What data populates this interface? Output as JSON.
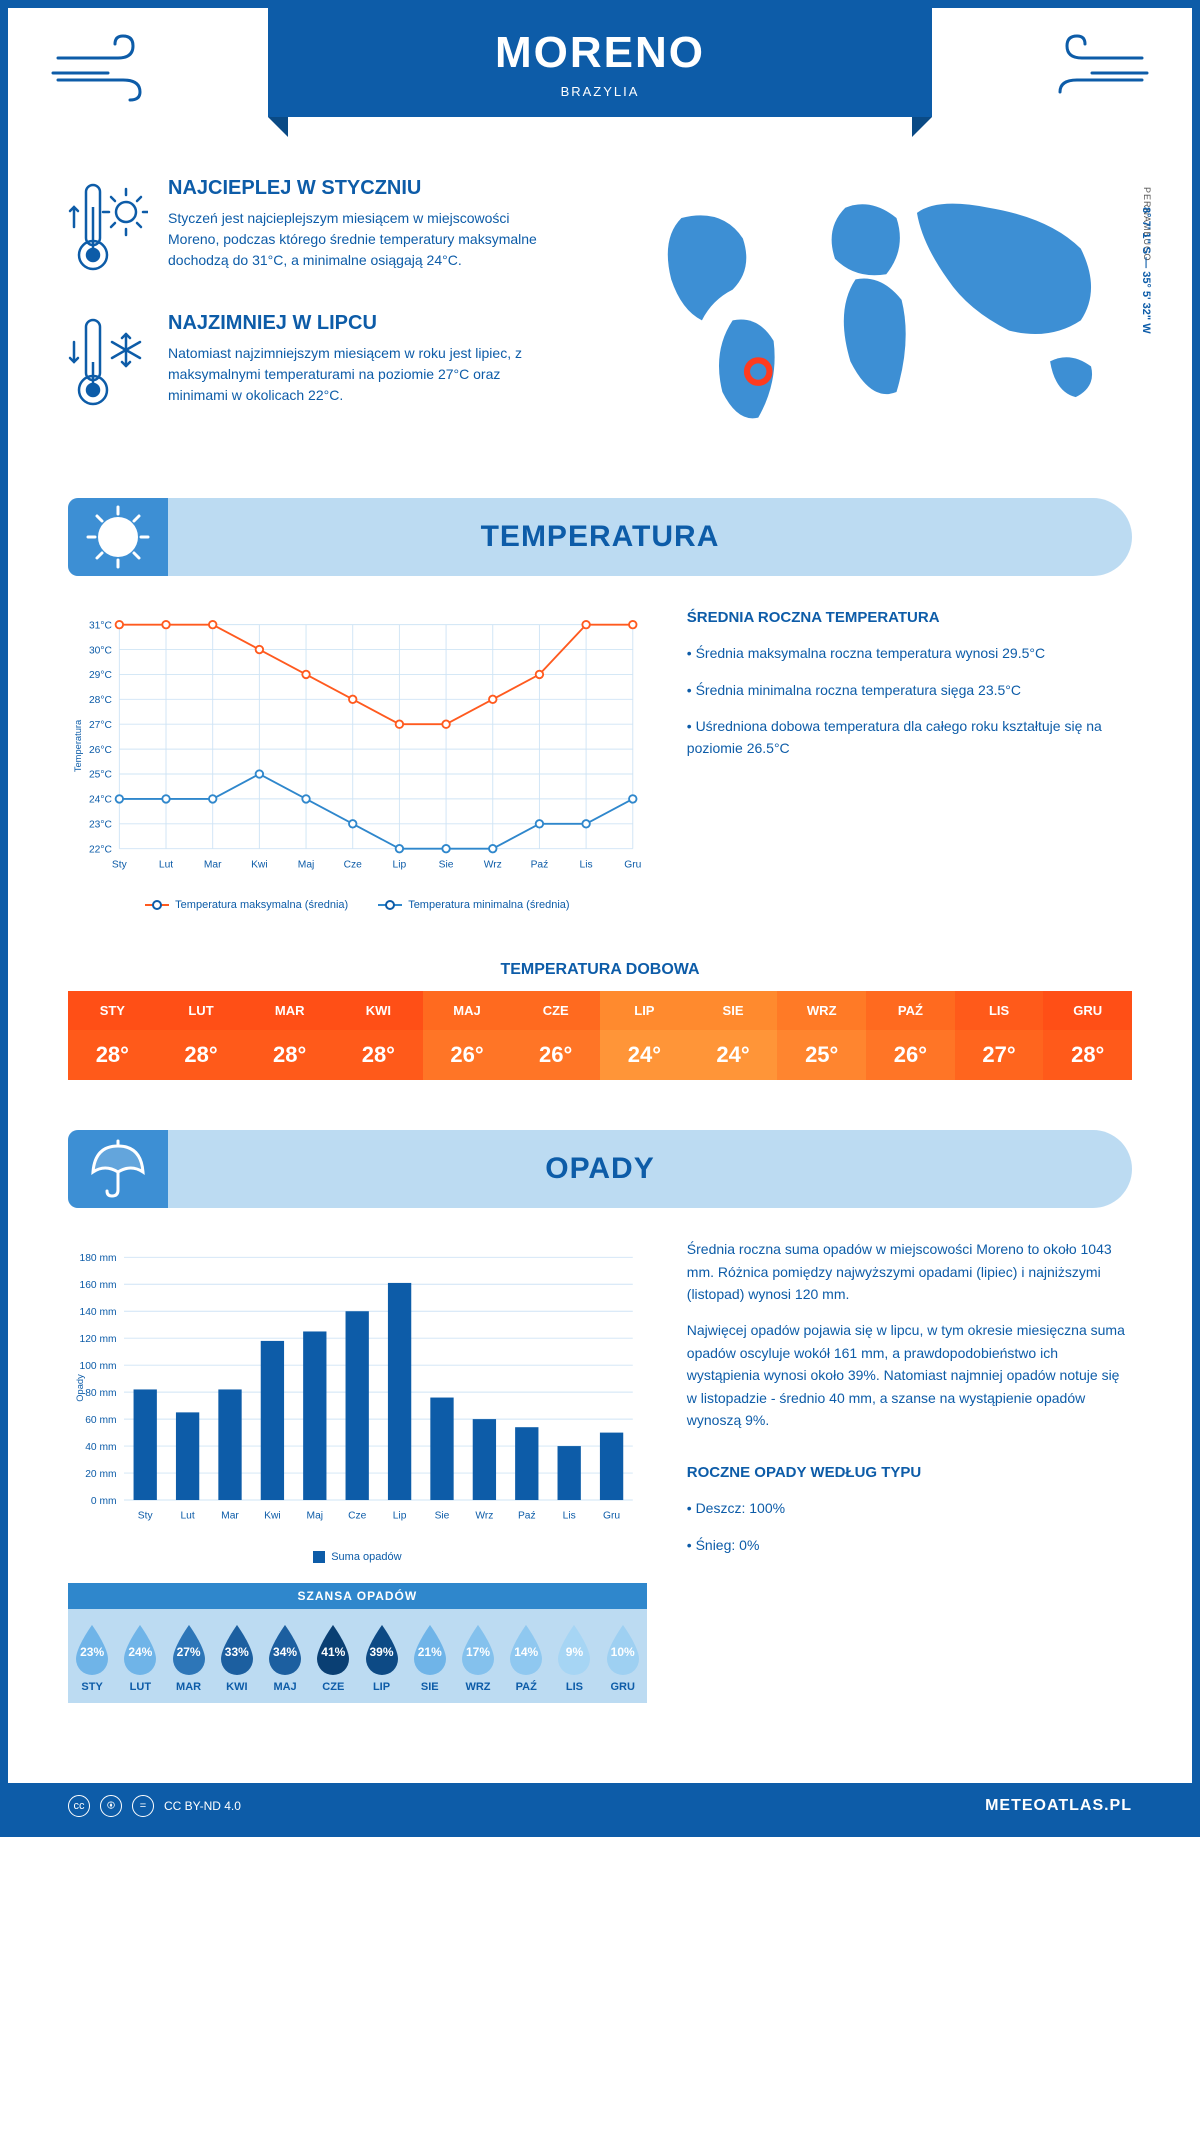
{
  "header": {
    "city": "MORENO",
    "country": "BRAZYLIA",
    "coords": "8° 7' 1\" S — 35° 5' 32\" W",
    "region": "PERNAMBUCO"
  },
  "intro": {
    "warm": {
      "title": "NAJCIEPLEJ W STYCZNIU",
      "text": "Styczeń jest najcieplejszym miesiącem w miejscowości Moreno, podczas którego średnie temperatury maksymalne dochodzą do 31°C, a minimalne osiągają 24°C."
    },
    "cold": {
      "title": "NAJZIMNIEJ W LIPCU",
      "text": "Natomiast najzimniejszym miesiącem w roku jest lipiec, z maksymalnymi temperaturami na poziomie 27°C oraz minimami w okolicach 22°C."
    }
  },
  "temperature": {
    "section_title": "TEMPERATURA",
    "months": [
      "Sty",
      "Lut",
      "Mar",
      "Kwi",
      "Maj",
      "Cze",
      "Lip",
      "Sie",
      "Wrz",
      "Paź",
      "Lis",
      "Gru"
    ],
    "max": [
      31,
      31,
      31,
      30,
      29,
      28,
      27,
      27,
      28,
      29,
      31,
      31
    ],
    "min": [
      24,
      24,
      24,
      25,
      24,
      23,
      22,
      22,
      22,
      23,
      23,
      24
    ],
    "ylim": [
      22,
      31
    ],
    "y_ticks": [
      22,
      23,
      24,
      25,
      26,
      27,
      28,
      29,
      30,
      31
    ],
    "max_color": "#ff5a1f",
    "min_color": "#2f87cc",
    "grid_color": "#cfe4f5",
    "legend_max": "Temperatura maksymalna (średnia)",
    "legend_min": "Temperatura minimalna (średnia)",
    "axis_label": "Temperatura",
    "stats_title": "ŚREDNIA ROCZNA TEMPERATURA",
    "stats": [
      "• Średnia maksymalna roczna temperatura wynosi 29.5°C",
      "• Średnia minimalna roczna temperatura sięga 23.5°C",
      "• Uśredniona dobowa temperatura dla całego roku kształtuje się na poziomie 26.5°C"
    ],
    "daily_title": "TEMPERATURA DOBOWA",
    "daily_months": [
      "STY",
      "LUT",
      "MAR",
      "KWI",
      "MAJ",
      "CZE",
      "LIP",
      "SIE",
      "WRZ",
      "PAŹ",
      "LIS",
      "GRU"
    ],
    "daily_values": [
      "28°",
      "28°",
      "28°",
      "28°",
      "26°",
      "26°",
      "24°",
      "24°",
      "25°",
      "26°",
      "27°",
      "28°"
    ],
    "daily_header_colors": [
      "#ff4f16",
      "#ff4f16",
      "#ff4f16",
      "#ff4f16",
      "#ff6a1f",
      "#ff6a1f",
      "#ff8a2e",
      "#ff8a2e",
      "#ff7a26",
      "#ff6a1f",
      "#ff5a1a",
      "#ff4f16"
    ],
    "daily_value_colors": [
      "#ff5a1a",
      "#ff5a1a",
      "#ff5a1a",
      "#ff5a1a",
      "#ff7526",
      "#ff7526",
      "#ff9538",
      "#ff9538",
      "#ff852f",
      "#ff7526",
      "#ff651e",
      "#ff5a1a"
    ]
  },
  "precipitation": {
    "section_title": "OPADY",
    "months": [
      "Sty",
      "Lut",
      "Mar",
      "Kwi",
      "Maj",
      "Cze",
      "Lip",
      "Sie",
      "Wrz",
      "Paź",
      "Lis",
      "Gru"
    ],
    "values": [
      82,
      65,
      82,
      118,
      125,
      140,
      161,
      76,
      60,
      54,
      40,
      50
    ],
    "ylim": [
      0,
      180
    ],
    "y_ticks": [
      0,
      20,
      40,
      60,
      80,
      100,
      120,
      140,
      160,
      180
    ],
    "bar_color": "#0d5ca8",
    "grid_color": "#cfe4f5",
    "legend": "Suma opadów",
    "axis_label": "Opady",
    "text1": "Średnia roczna suma opadów w miejscowości Moreno to około 1043 mm. Różnica pomiędzy najwyższymi opadami (lipiec) i najniższymi (listopad) wynosi 120 mm.",
    "text2": "Najwięcej opadów pojawia się w lipcu, w tym okresie miesięczna suma opadów oscyluje wokół 161 mm, a prawdopodobieństwo ich wystąpienia wynosi około 39%. Natomiast najmniej opadów notuje się w listopadzie - średnio 40 mm, a szanse na wystąpienie opadów wynoszą 9%.",
    "chance_title": "SZANSA OPADÓW",
    "chance_months": [
      "STY",
      "LUT",
      "MAR",
      "KWI",
      "MAJ",
      "CZE",
      "LIP",
      "SIE",
      "WRZ",
      "PAŹ",
      "LIS",
      "GRU"
    ],
    "chance_values": [
      "23%",
      "24%",
      "27%",
      "33%",
      "34%",
      "41%",
      "39%",
      "21%",
      "17%",
      "14%",
      "9%",
      "10%"
    ],
    "chance_colors": [
      "#6fb4e8",
      "#6fb4e8",
      "#2d76b8",
      "#1c5fa0",
      "#1c5fa0",
      "#0a3f73",
      "#0d4a85",
      "#6fb4e8",
      "#84c1ed",
      "#8fc8f0",
      "#a6d5f4",
      "#9ed0f2"
    ],
    "type_title": "ROCZNE OPADY WEDŁUG TYPU",
    "types": [
      "• Deszcz: 100%",
      "• Śnieg: 0%"
    ]
  },
  "footer": {
    "license": "CC BY-ND 4.0",
    "site": "METEOATLAS.PL"
  }
}
